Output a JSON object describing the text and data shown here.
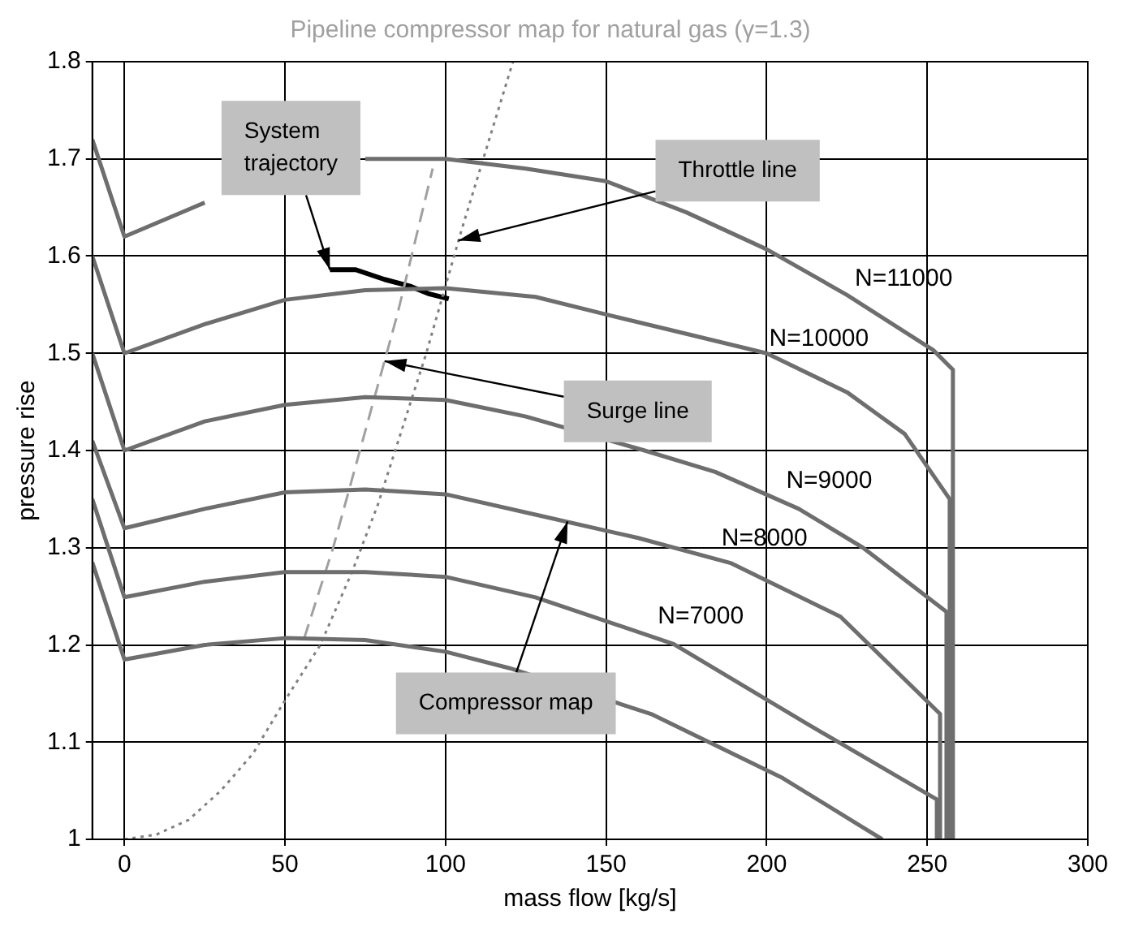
{
  "chart_data": {
    "type": "line",
    "title": "Pipeline compressor map for natural gas (γ=1.3)",
    "xlabel": "mass flow [kg/s]",
    "ylabel": "pressure rise",
    "xlim": [
      -10,
      300
    ],
    "xticks": [
      0,
      50,
      100,
      150,
      200,
      250,
      300
    ],
    "ylim": [
      1,
      1.8
    ],
    "yticks": [
      1,
      1.1,
      1.2,
      1.3,
      1.4,
      1.5,
      1.6,
      1.7,
      1.8
    ],
    "grid": true,
    "legend": false,
    "marker": "none",
    "series": [
      {
        "color": "#6e6e6e",
        "line_style": "solid",
        "x": [
          -10,
          0,
          25,
          50,
          75,
          100,
          125,
          150,
          175,
          200,
          225,
          252,
          258,
          258
        ],
        "values": [
          1.72,
          1.62,
          1.655,
          null,
          1.7,
          1.7,
          1.69,
          1.677,
          1.645,
          1.607,
          1.56,
          1.503,
          1.483,
          1.0
        ]
      },
      {
        "color": "#6e6e6e",
        "line_style": "solid",
        "x": [
          -10,
          0,
          25,
          50,
          75,
          100,
          128,
          150,
          175,
          200,
          225,
          243,
          257,
          257
        ],
        "values": [
          1.6,
          1.5,
          1.53,
          1.555,
          1.565,
          1.567,
          1.558,
          1.54,
          1.52,
          1.5,
          1.46,
          1.417,
          1.35,
          1.0
        ]
      },
      {
        "color": "#6e6e6e",
        "line_style": "solid",
        "x": [
          -10,
          0,
          25,
          50,
          75,
          100,
          125,
          162,
          184,
          210,
          230,
          256,
          256
        ],
        "values": [
          1.5,
          1.4,
          1.43,
          1.447,
          1.455,
          1.452,
          1.435,
          1.4,
          1.378,
          1.34,
          1.3,
          1.234,
          1.0
        ]
      },
      {
        "color": "#6e6e6e",
        "line_style": "solid",
        "x": [
          -10,
          0,
          25,
          50,
          75,
          100,
          128,
          160,
          189,
          223,
          254,
          254
        ],
        "values": [
          1.41,
          1.32,
          1.34,
          1.357,
          1.36,
          1.355,
          1.334,
          1.31,
          1.284,
          1.229,
          1.129,
          1.0
        ]
      },
      {
        "color": "#6e6e6e",
        "line_style": "solid",
        "x": [
          -10,
          0,
          25,
          50,
          75,
          100,
          128,
          171,
          213,
          253,
          253
        ],
        "values": [
          1.35,
          1.249,
          1.265,
          1.275,
          1.275,
          1.27,
          1.249,
          1.201,
          1.118,
          1.041,
          1.0
        ]
      },
      {
        "color": "#6e6e6e",
        "line_style": "solid",
        "x": [
          -10,
          0,
          25,
          50,
          75,
          100,
          120,
          164,
          205,
          236
        ],
        "values": [
          1.285,
          1.185,
          1.2,
          1.207,
          1.205,
          1.193,
          1.176,
          1.129,
          1.063,
          1.0
        ]
      },
      {
        "color": "#a0a0a0",
        "line_style": "dashed",
        "x": [
          56,
          65,
          75,
          85,
          96
        ],
        "values": [
          1.207,
          1.3,
          1.42,
          1.54,
          1.69
        ]
      },
      {
        "color": "#808080",
        "line_style": "dotted",
        "x": [
          0,
          10,
          20,
          30,
          40,
          50,
          61,
          71,
          79,
          94,
          105,
          121
        ],
        "values": [
          1.0,
          1.005,
          1.02,
          1.05,
          1.088,
          1.143,
          1.2,
          1.276,
          1.345,
          1.5,
          1.627,
          1.8
        ]
      },
      {
        "color": "#000000",
        "line_style": "solid",
        "x": [
          64,
          72,
          81,
          89,
          95,
          101
        ],
        "values": [
          1.586,
          1.586,
          1.576,
          1.569,
          1.561,
          1.556
        ]
      }
    ],
    "annotations": [
      {
        "text": "System trajectory",
        "x": 64,
        "y": 1.586
      },
      {
        "text": "Throttle line",
        "x": 104,
        "y": 1.616
      },
      {
        "text": "Surge line",
        "x": 81,
        "y": 1.492
      },
      {
        "text": "Compressor map",
        "x": 138,
        "y": 1.327
      },
      "N=11000",
      "N=10000",
      "N=9000",
      "N=8000",
      "N=7000"
    ]
  }
}
